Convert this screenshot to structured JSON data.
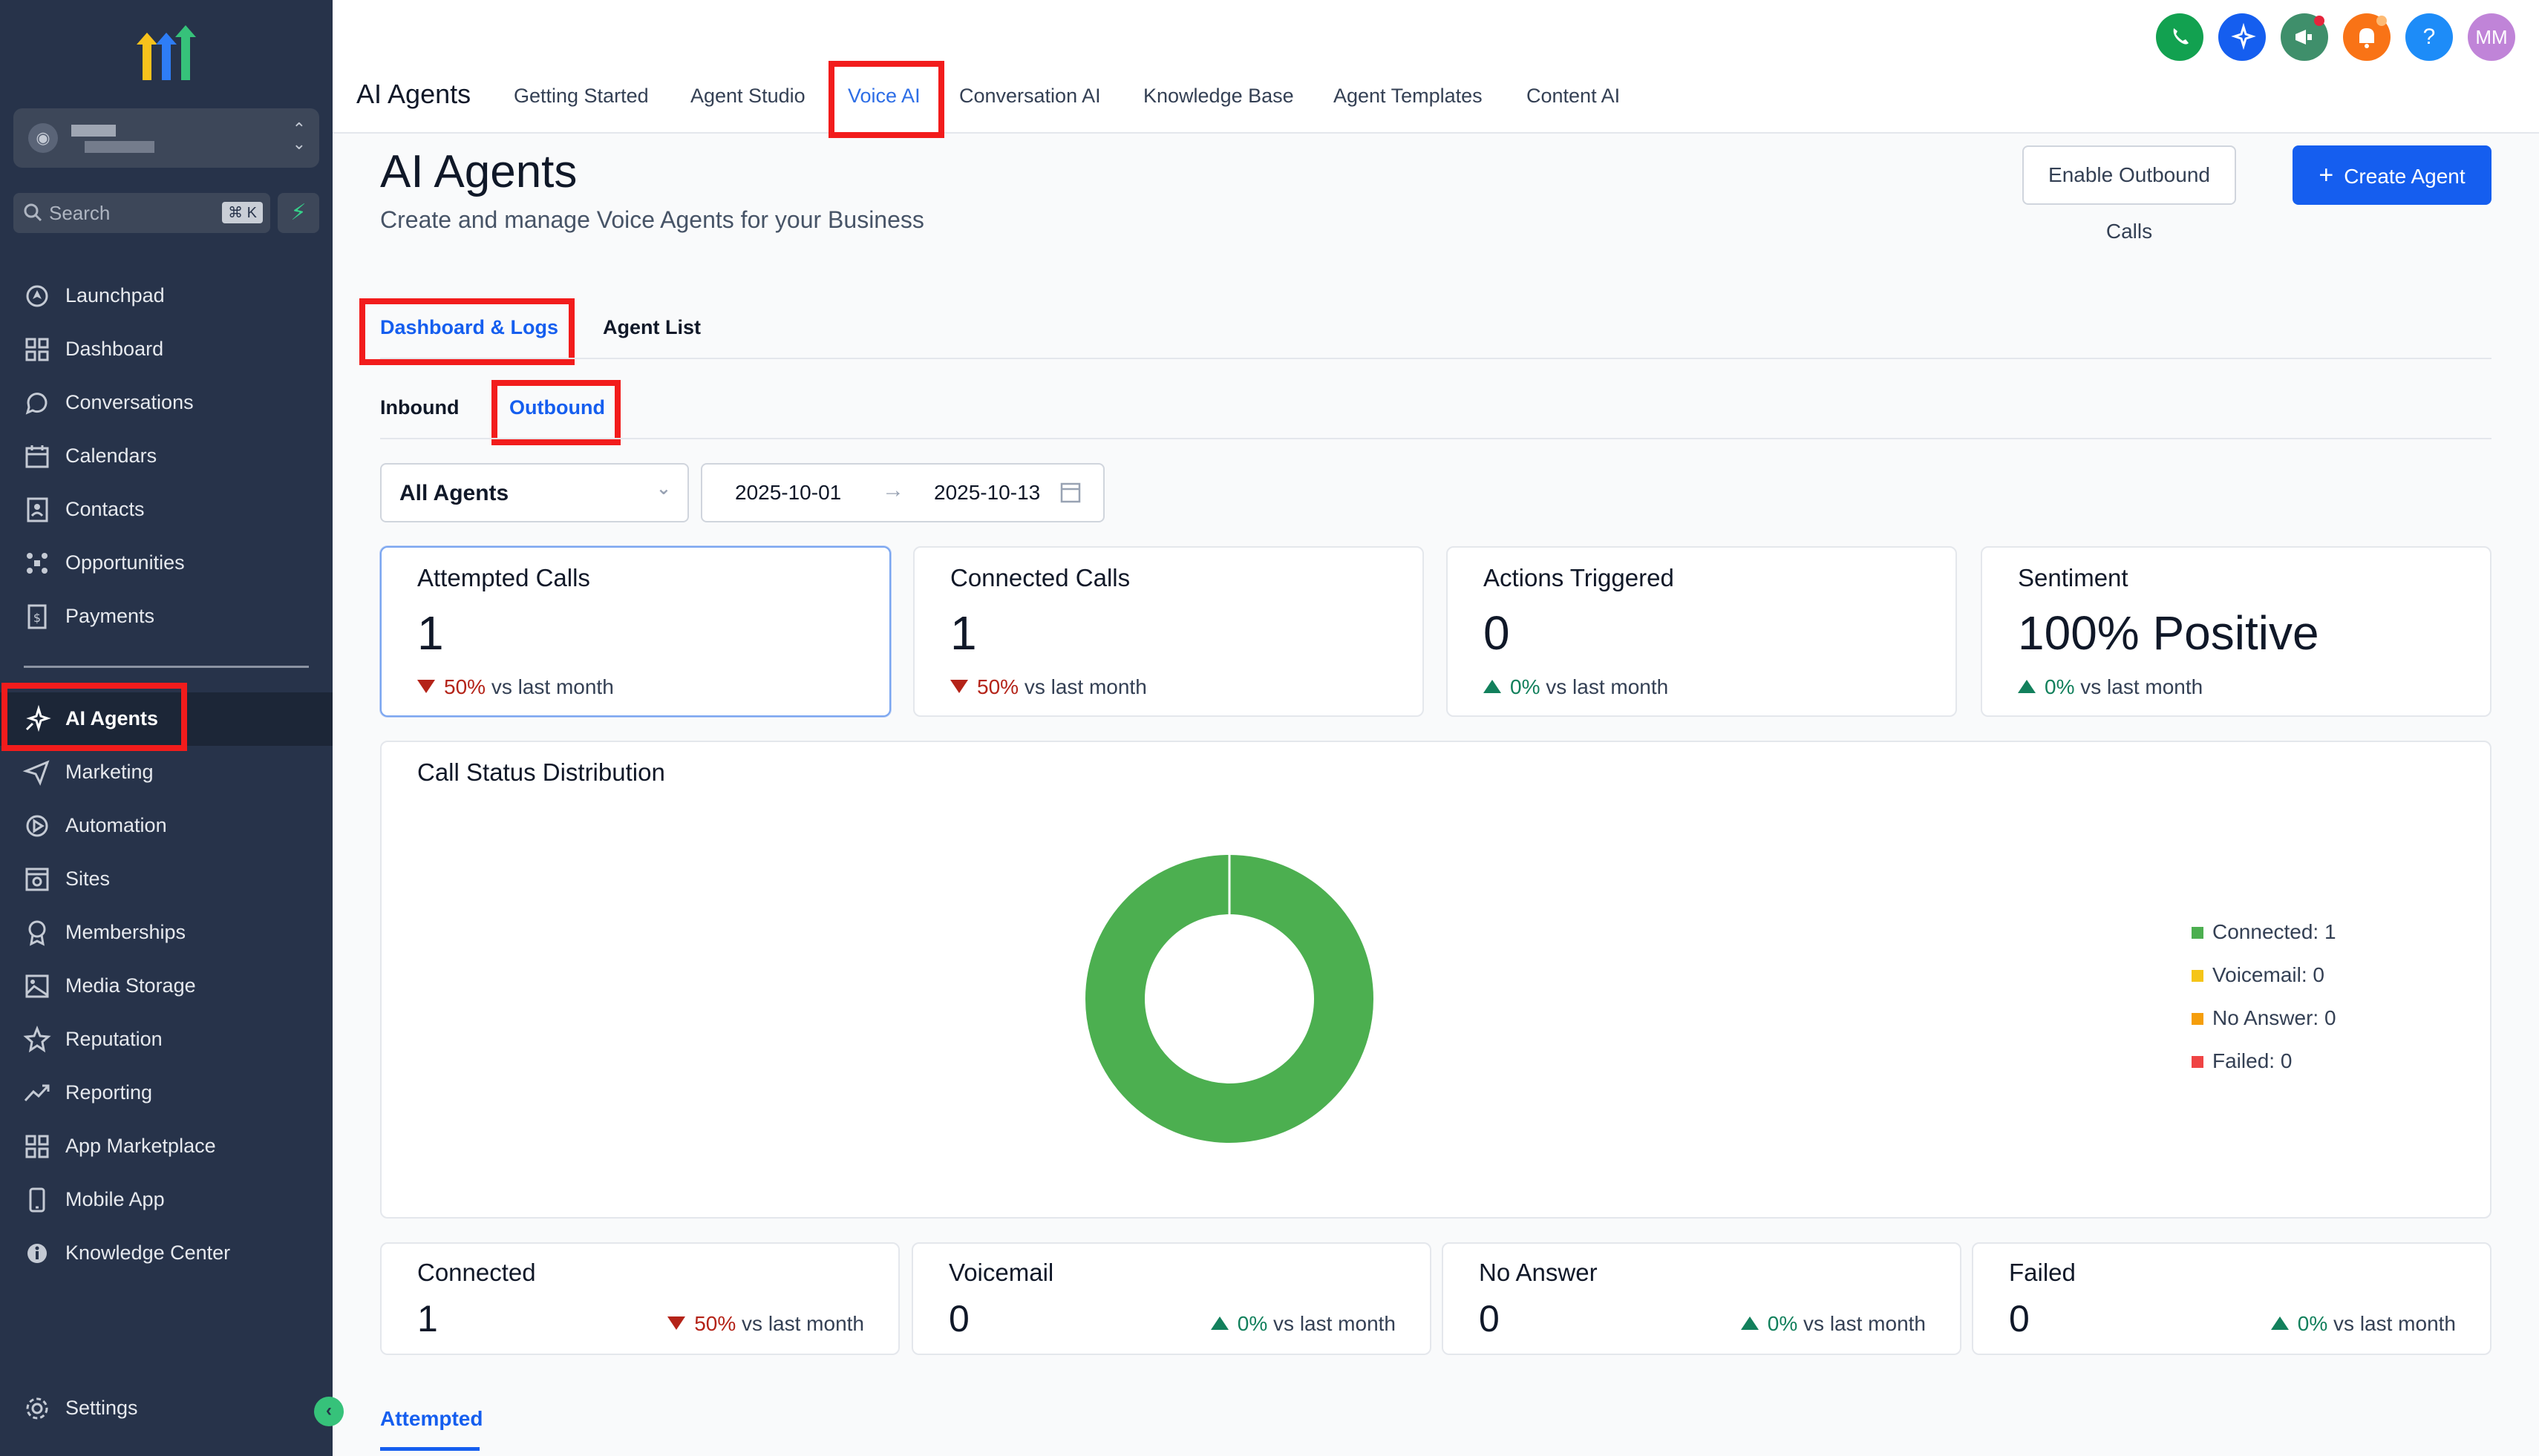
{
  "sidebar": {
    "search_placeholder": "Search",
    "search_shortcut": "⌘ K",
    "items": [
      {
        "label": "Launchpad",
        "icon": "launchpad-icon"
      },
      {
        "label": "Dashboard",
        "icon": "dashboard-icon"
      },
      {
        "label": "Conversations",
        "icon": "chat-bubble-icon"
      },
      {
        "label": "Calendars",
        "icon": "calendar-icon"
      },
      {
        "label": "Contacts",
        "icon": "contacts-icon"
      },
      {
        "label": "Opportunities",
        "icon": "opportunities-icon"
      },
      {
        "label": "Payments",
        "icon": "payments-icon"
      },
      {
        "label": "AI Agents",
        "icon": "sparkle-icon"
      },
      {
        "label": "Marketing",
        "icon": "send-icon"
      },
      {
        "label": "Automation",
        "icon": "automation-icon"
      },
      {
        "label": "Sites",
        "icon": "sites-icon"
      },
      {
        "label": "Memberships",
        "icon": "award-icon"
      },
      {
        "label": "Media Storage",
        "icon": "image-icon"
      },
      {
        "label": "Reputation",
        "icon": "star-icon"
      },
      {
        "label": "Reporting",
        "icon": "trend-icon"
      },
      {
        "label": "App Marketplace",
        "icon": "grid-icon"
      },
      {
        "label": "Mobile App",
        "icon": "mobile-icon"
      },
      {
        "label": "Knowledge Center",
        "icon": "info-icon"
      }
    ],
    "settings_label": "Settings"
  },
  "topnav": {
    "brand": "AI Agents",
    "tabs": [
      "Getting Started",
      "Agent Studio",
      "Voice AI",
      "Conversation AI",
      "Knowledge Base",
      "Agent Templates",
      "Content AI"
    ],
    "selected_tab": "Voice AI",
    "avatar_initials": "MM",
    "help_symbol": "?"
  },
  "header": {
    "title": "AI Agents",
    "subtitle": "Create and manage Voice Agents for your Business",
    "enable_outbound_label": "Enable Outbound Calls",
    "create_agent_label": "Create Agent"
  },
  "tabs": {
    "primary": [
      "Dashboard & Logs",
      "Agent List"
    ],
    "secondary": [
      "Inbound",
      "Outbound"
    ]
  },
  "filters": {
    "agent": "All Agents",
    "date_from": "2025-10-01",
    "date_to": "2025-10-13"
  },
  "stats": [
    {
      "title": "Attempted Calls",
      "value": "1",
      "delta": "50%",
      "trend": "down",
      "suffix": "vs last month"
    },
    {
      "title": "Connected Calls",
      "value": "1",
      "delta": "50%",
      "trend": "down",
      "suffix": "vs last month"
    },
    {
      "title": "Actions Triggered",
      "value": "0",
      "delta": "0%",
      "trend": "up",
      "suffix": "vs last month"
    },
    {
      "title": "Sentiment",
      "value": "100% Positive",
      "delta": "0%",
      "trend": "up",
      "suffix": "vs last month"
    }
  ],
  "chart_data": {
    "type": "pie",
    "title": "Call Status Distribution",
    "categories": [
      "Connected",
      "Voicemail",
      "No Answer",
      "Failed"
    ],
    "values": [
      1,
      0,
      0,
      0
    ],
    "colors": [
      "#4caf50",
      "#f5c518",
      "#f59e0b",
      "#ef4444"
    ],
    "legend_labels": [
      "Connected: 1",
      "Voicemail: 0",
      "No Answer: 0",
      "Failed: 0"
    ],
    "legend_position": "right"
  },
  "status_cards": [
    {
      "title": "Connected",
      "value": "1",
      "delta": "50%",
      "trend": "down",
      "suffix": "vs last month"
    },
    {
      "title": "Voicemail",
      "value": "0",
      "delta": "0%",
      "trend": "up",
      "suffix": "vs last month"
    },
    {
      "title": "No Answer",
      "value": "0",
      "delta": "0%",
      "trend": "up",
      "suffix": "vs last month"
    },
    {
      "title": "Failed",
      "value": "0",
      "delta": "0%",
      "trend": "up",
      "suffix": "vs last month"
    }
  ],
  "bottom_tab": "Attempted"
}
